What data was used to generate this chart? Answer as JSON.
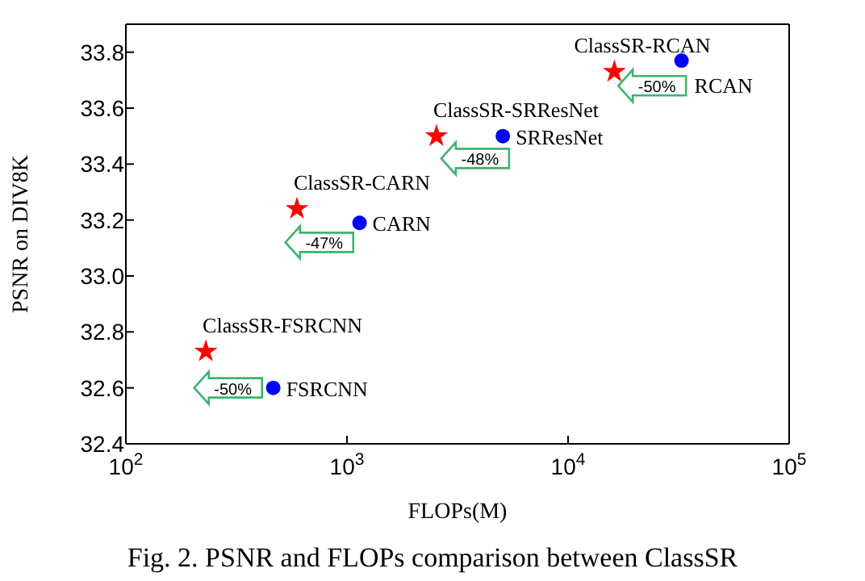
{
  "chart_data": {
    "type": "scatter",
    "xlabel": "FLOPs(M)",
    "ylabel": "PSNR on DIV8K",
    "log": "x",
    "xlim": [
      100,
      100000
    ],
    "xticks": [
      {
        "value": 100,
        "label": "10$^{2}$"
      },
      {
        "value": 1000,
        "label": "10$^{3}$"
      },
      {
        "value": 10000,
        "label": "10$^{4}$"
      },
      {
        "value": 100000,
        "label": "10$^{5}$"
      }
    ],
    "ylim": [
      32.4,
      33.9
    ],
    "yticks": [
      32.4,
      32.6,
      32.8,
      {
        "value": 33,
        "label": "33.0"
      },
      33.2,
      33.4,
      33.6,
      33.8
    ],
    "series": [
      {
        "color": "#ff0000",
        "marker": "star",
        "x": [
          230,
          594,
          2540,
          16200
        ],
        "values": [
          32.73,
          33.24,
          33.5,
          33.73
        ],
        "value_labels": [
          "ClassSR-FSRCNN",
          "ClassSR-CARN",
          "ClassSR-SRResNet",
          "ClassSR-RCAN"
        ]
      },
      {
        "color": "#0000ff",
        "marker": "circle",
        "x": [
          464,
          1140,
          5070,
          32600
        ],
        "values": [
          32.6,
          33.19,
          33.5,
          33.77
        ],
        "value_labels": [
          "FSRCNN",
          "CARN",
          "SRResNet",
          "RCAN"
        ]
      }
    ],
    "annotations": [
      {
        "text": "-50%",
        "x": 290,
        "y": 32.6
      },
      {
        "text": "-47%",
        "x": 750,
        "y": 33.12
      },
      {
        "text": "-48%",
        "x": 3800,
        "y": 33.42
      },
      {
        "text": "-50%",
        "x": 24000,
        "y": 33.68
      },
      "Fig. 2. PSNR and FLOPs comparison between ClassSR"
    ]
  }
}
